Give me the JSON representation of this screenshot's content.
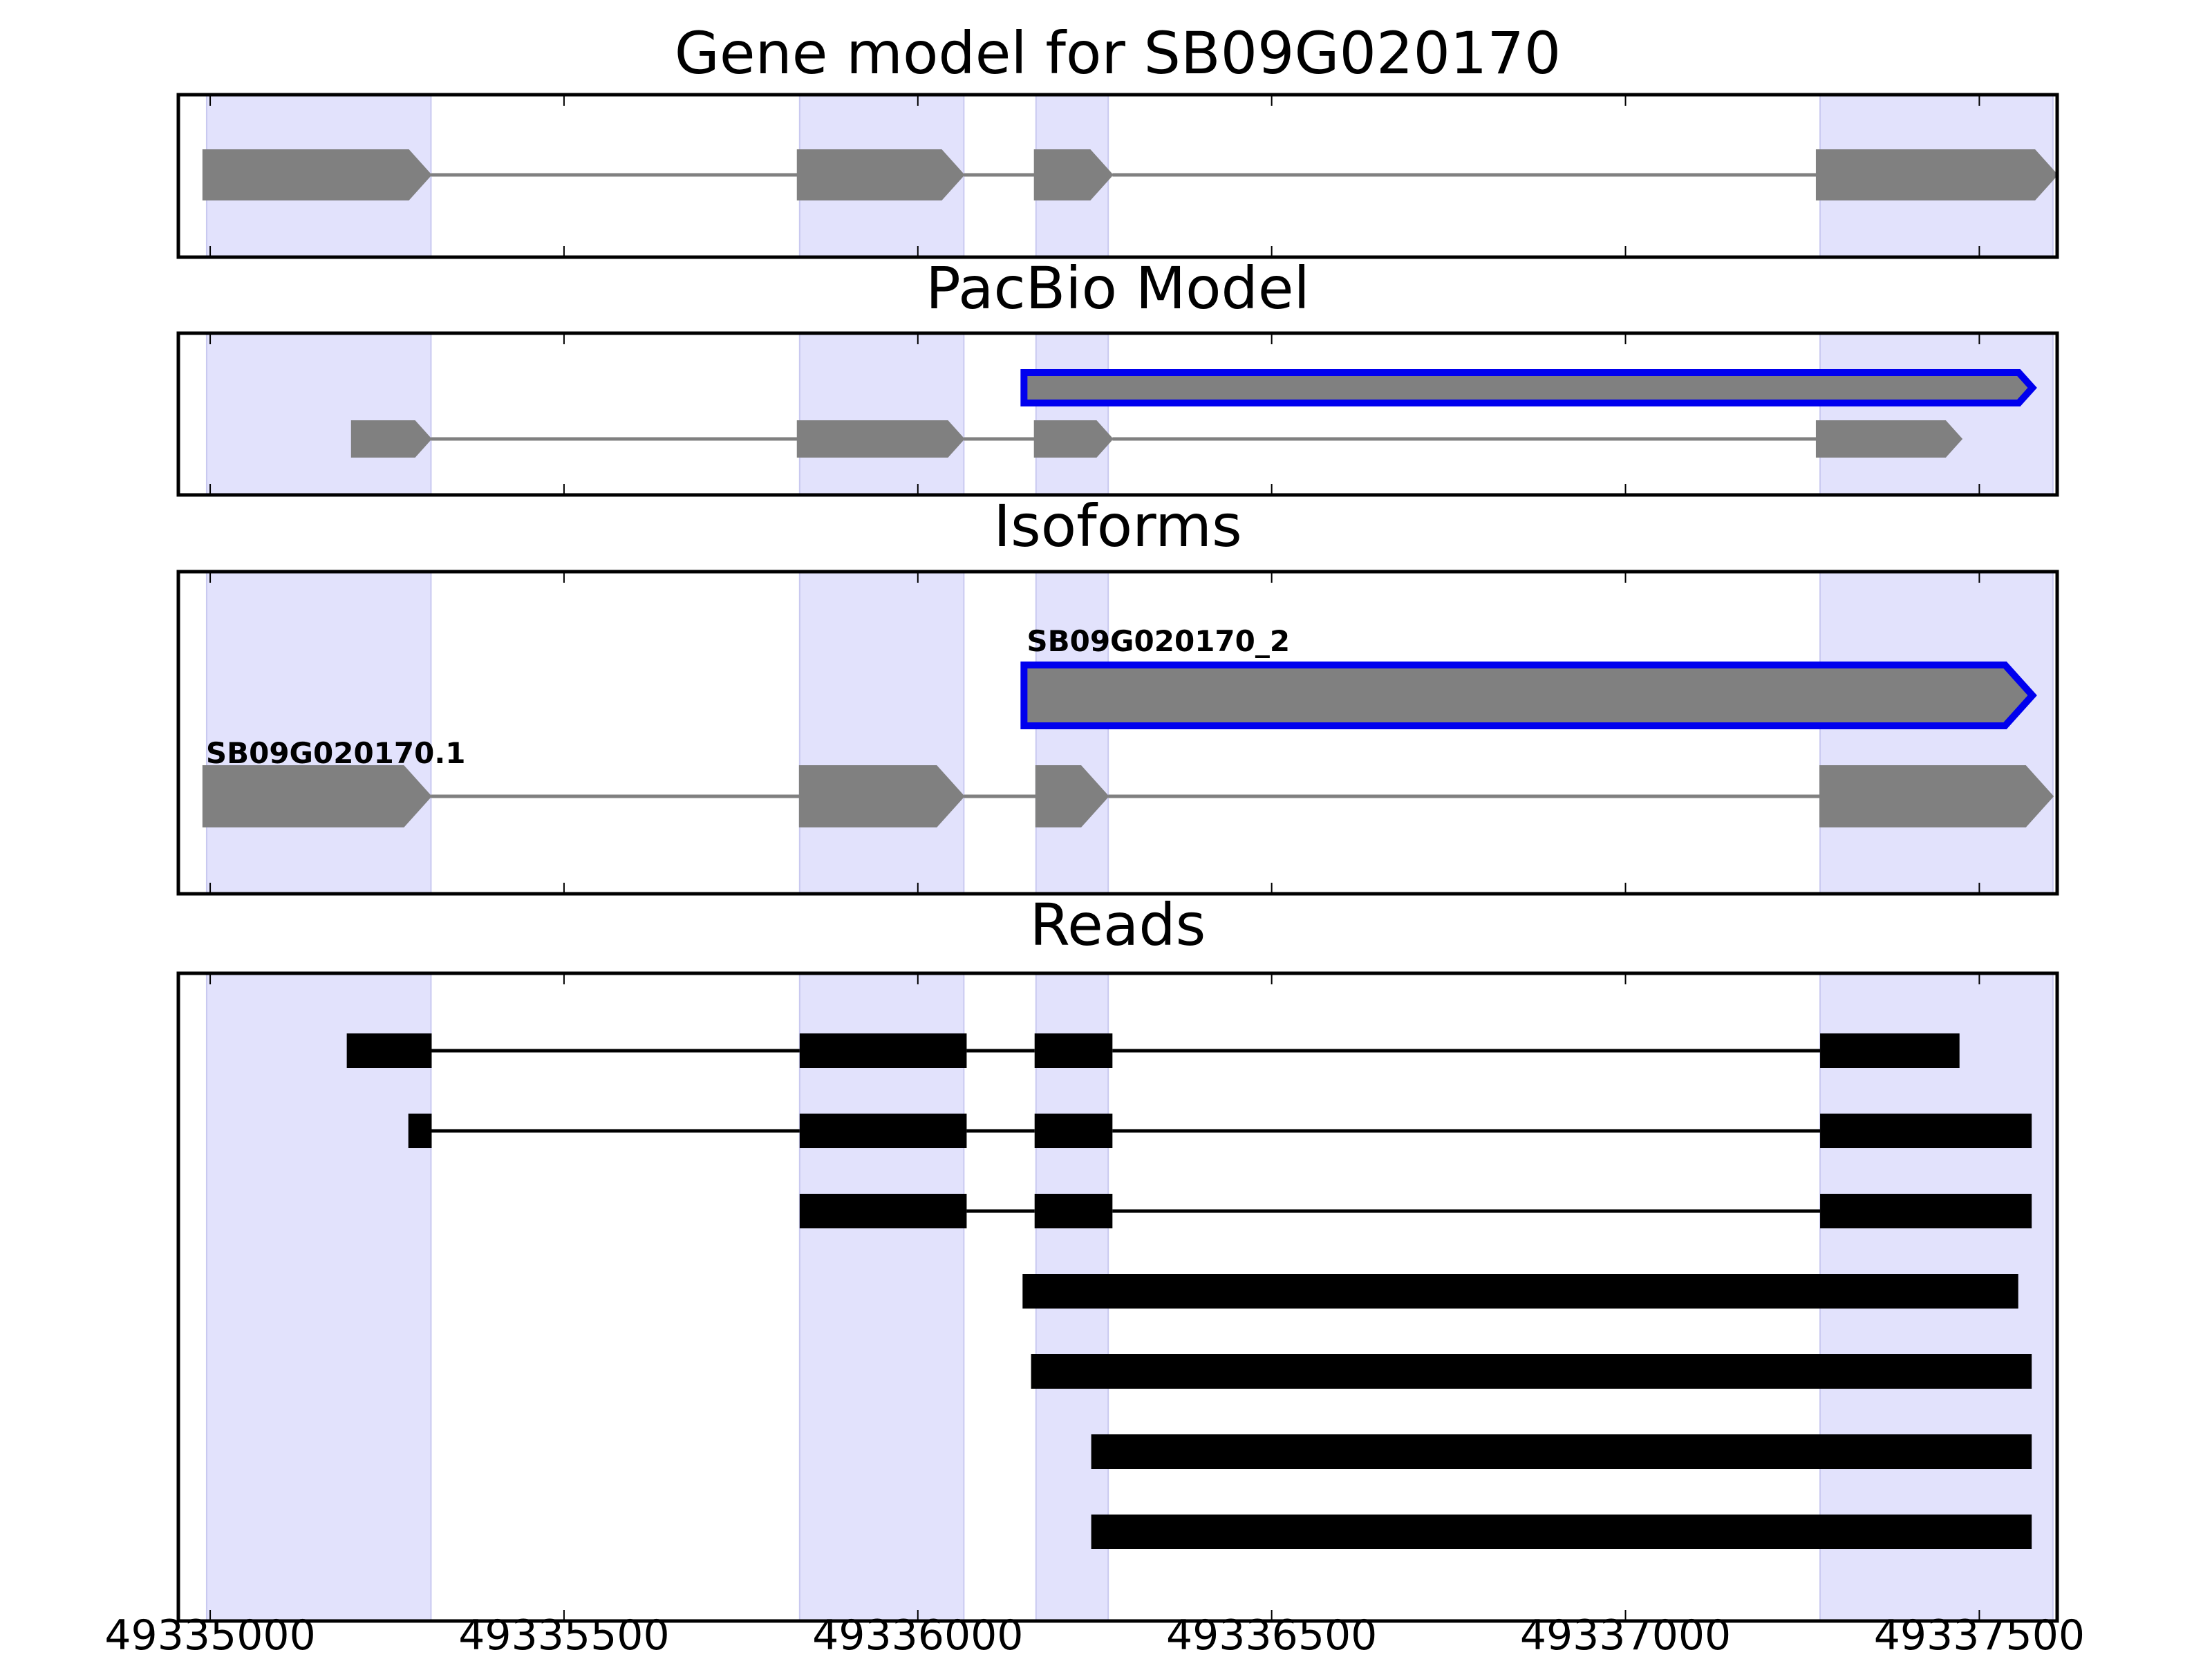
{
  "chart_data": {
    "type": "gene-structure",
    "xlim": [
      49334955,
      49337610
    ],
    "x_ticks": [
      49335000,
      49335500,
      49336000,
      49336500,
      49337000,
      49337500
    ],
    "colors": {
      "exon_region": "#e2e2fc",
      "feature_fill": "#808080",
      "highlight_edge": "#0000ee",
      "read": "#000000",
      "intron_line_gray": "#808080"
    },
    "exon_regions": [
      [
        49334995,
        49335312
      ],
      [
        49335833,
        49336065
      ],
      [
        49336167,
        49336269
      ],
      [
        49337275,
        49337604
      ]
    ],
    "panels": [
      {
        "title": "Gene model for SB09G020170",
        "features": [
          {
            "label": "",
            "highlight": false,
            "exons": [
              [
                49334990,
                49335312
              ],
              [
                49335830,
                49336065
              ],
              [
                49336165,
                49336275
              ],
              [
                49337270,
                49337610
              ]
            ]
          }
        ]
      },
      {
        "title": "PacBio Model",
        "features": [
          {
            "label": "",
            "highlight": true,
            "exons": [
              [
                49336150,
                49337575
              ]
            ]
          },
          {
            "label": "",
            "highlight": false,
            "exons": [
              [
                49335200,
                49335312
              ],
              [
                49335830,
                49336065
              ],
              [
                49336165,
                49336275
              ],
              [
                49337270,
                49337475
              ]
            ]
          }
        ]
      },
      {
        "title": "Isoforms",
        "features": [
          {
            "label": "SB09G020170_2",
            "highlight": true,
            "exons": [
              [
                49336150,
                49337575
              ]
            ]
          },
          {
            "label": "SB09G020170.1",
            "highlight": false,
            "exons": [
              [
                49334990,
                49335312
              ],
              [
                49335833,
                49336065
              ],
              [
                49336167,
                49336269
              ],
              [
                49337275,
                49337604
              ]
            ]
          }
        ]
      },
      {
        "title": "Reads",
        "reads": [
          [
            [
              49335193,
              49335313
            ],
            [
              49335833,
              49336069
            ],
            [
              49336165,
              49336275
            ],
            [
              49337275,
              49337472
            ]
          ],
          [
            [
              49335280,
              49335313
            ],
            [
              49335833,
              49336069
            ],
            [
              49336165,
              49336275
            ],
            [
              49337275,
              49337574
            ]
          ],
          [
            [
              49335833,
              49336069
            ],
            [
              49336165,
              49336275
            ],
            [
              49337275,
              49337574
            ]
          ],
          [
            [
              49336148,
              49337555
            ]
          ],
          [
            [
              49336160,
              49337574
            ]
          ],
          [
            [
              49336245,
              49337574
            ]
          ],
          [
            [
              49336245,
              49337574
            ]
          ]
        ]
      }
    ]
  }
}
